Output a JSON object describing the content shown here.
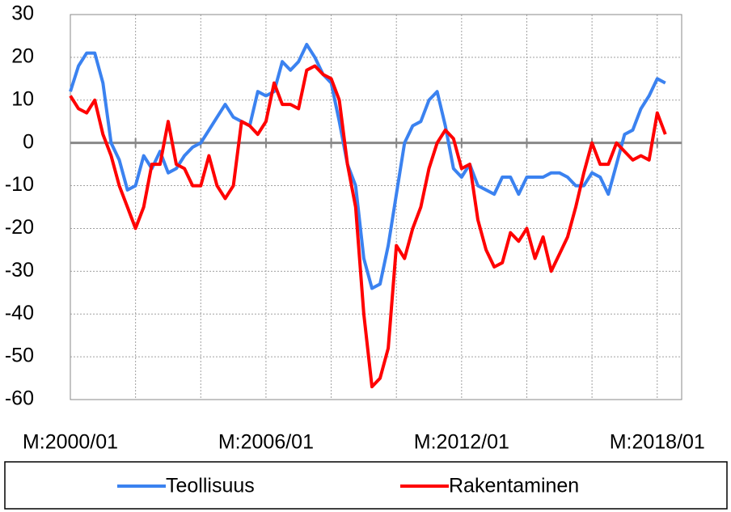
{
  "chart_data": {
    "type": "line",
    "categories": [
      "M:2000/01",
      null,
      null,
      null,
      null,
      null,
      null,
      null,
      null,
      null,
      null,
      null,
      null,
      null,
      null,
      null,
      null,
      null,
      null,
      null,
      null,
      null,
      null,
      null,
      "M:2006/01",
      null,
      null,
      null,
      null,
      null,
      null,
      null,
      null,
      null,
      null,
      null,
      null,
      null,
      null,
      null,
      null,
      null,
      null,
      null,
      null,
      null,
      null,
      null,
      "M:2012/01",
      null,
      null,
      null,
      null,
      null,
      null,
      null,
      null,
      null,
      null,
      null,
      null,
      null,
      null,
      null,
      null,
      null,
      null,
      null,
      null,
      null,
      null,
      null,
      "M:2018/01",
      null,
      null,
      null
    ],
    "series": [
      {
        "name": "Teollisuus",
        "color": "#3b82f0",
        "values": [
          12,
          18,
          21,
          21,
          14,
          0,
          -4,
          -11,
          -10,
          -3,
          -6,
          -2,
          -7,
          -6,
          -3,
          -1,
          0,
          3,
          6,
          9,
          6,
          5,
          4,
          12,
          11,
          12,
          19,
          17,
          19,
          23,
          20,
          16,
          14,
          5,
          -5,
          -10,
          -27,
          -34,
          -33,
          -24,
          -12,
          0,
          4,
          5,
          10,
          12,
          4,
          -6,
          -8,
          -5,
          -10,
          -11,
          -12,
          -8,
          -8,
          -12,
          -8,
          -8,
          -8,
          -7,
          -7,
          -8,
          -10,
          -10,
          -7,
          -8,
          -12,
          -5,
          2,
          3,
          8,
          11,
          15,
          14,
          null,
          null
        ]
      },
      {
        "name": "Rakentaminen",
        "color": "#ff0000",
        "values": [
          11,
          8,
          7,
          10,
          2,
          -3,
          -10,
          -15,
          -20,
          -15,
          -5,
          -5,
          5,
          -5,
          -6,
          -10,
          -10,
          -3,
          -10,
          -13,
          -10,
          5,
          4,
          2,
          5,
          14,
          9,
          9,
          8,
          17,
          18,
          16,
          15,
          10,
          -5,
          -15,
          -40,
          -57,
          -55,
          -48,
          -24,
          -27,
          -20,
          -15,
          -6,
          0,
          3,
          1,
          -6,
          -5,
          -18,
          -25,
          -29,
          -28,
          -21,
          -23,
          -20,
          -27,
          -22,
          -30,
          -26,
          -22,
          -15,
          -7,
          0,
          -5,
          -5,
          0,
          -2,
          -4,
          -3,
          -4,
          7,
          2,
          null,
          null
        ]
      }
    ],
    "ylim": [
      -60,
      30
    ],
    "yticks": [
      -60,
      -50,
      -40,
      -30,
      -20,
      -10,
      0,
      10,
      20,
      30
    ],
    "grid": true,
    "legend": "bottom"
  }
}
